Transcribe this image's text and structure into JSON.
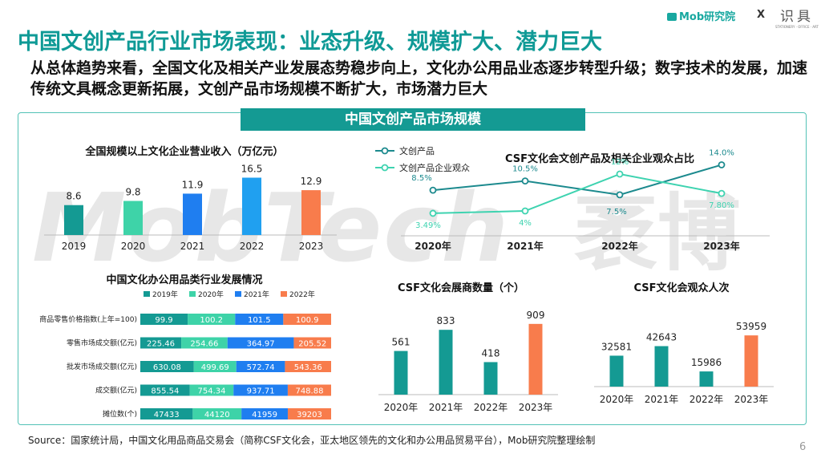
{
  "header": {
    "title": "中国文创产品行业市场表现：业态升级、规模扩大、潜力巨大",
    "subtitle": "从总体趋势来看，全国文化及相关产业发展态势稳步向上，文化办公用品业态逐步转型升级；数字技术的发展，加速传统文具概念更新拓展，文创产品市场规模不断扩大，市场潜力巨大",
    "logo_mob": "Mob研究院",
    "logo_x": "X",
    "logo_sj": "识具",
    "logo_sj_small": "STATIONERY · OFFICE · ART"
  },
  "panel": {
    "banner": "中国文创产品市场规模"
  },
  "watermark": {
    "text": "MobTech",
    "text2": "袤博"
  },
  "footer": {
    "source": "Source：国家统计局，中国文化用品商品交易会（简称CSF文化会，亚太地区领先的文化和办公用品贸易平台），Mob研究院整理绘制",
    "page": "6"
  },
  "colors": {
    "teal": "#149a93",
    "mint": "#3ed3a8",
    "blue": "#1f7ef0",
    "orange": "#f87c4c",
    "green_line": "#1c8a8e"
  },
  "chart_data": [
    {
      "id": "revenue",
      "type": "bar",
      "title": "全国规模以上文化企业营业收入（万亿元）",
      "categories": [
        "2019",
        "2020",
        "2021",
        "2022",
        "2023"
      ],
      "values": [
        8.6,
        9.8,
        11.9,
        16.5,
        12.9
      ],
      "colors": [
        "#149a93",
        "#3ed3a8",
        "#1f7ef0",
        "#20a0f0",
        "#f87c4c"
      ],
      "ylim": [
        0,
        18
      ]
    },
    {
      "id": "audience_share",
      "type": "line",
      "title": "CSF文化会文创产品及相关企业观众占比",
      "categories": [
        "2020年",
        "2021年",
        "2022年",
        "2023年"
      ],
      "ylim": [
        0,
        16
      ],
      "legend_position": "top-left",
      "series": [
        {
          "name": "文创产品",
          "values": [
            8.5,
            10.5,
            7.5,
            14.0
          ],
          "labels": [
            "8.5%",
            "10.5%",
            "7.5%",
            "14.0%"
          ],
          "color": "#1c8a8e"
        },
        {
          "name": "文创产品企业观众",
          "values": [
            3.49,
            4,
            12,
            7.8
          ],
          "labels": [
            "3.49%",
            "4%",
            "12%",
            "7.80%"
          ],
          "color": "#3ed3b0"
        }
      ]
    },
    {
      "id": "office_supplies",
      "type": "bar",
      "title": "中国文化办公用品类行业发展情况",
      "orientation": "horizontal-stacked-100",
      "categories": [
        "商品零售价格指数(上年=100)",
        "零售市场成交额(亿元)",
        "批发市场成交额(亿元)",
        "成交额(亿元)",
        "摊位数(个)"
      ],
      "series": [
        {
          "name": "2019年",
          "color": "#149a93",
          "values": [
            99.9,
            225.46,
            630.08,
            855.54,
            47433
          ]
        },
        {
          "name": "2020年",
          "color": "#3ed3a8",
          "values": [
            100.2,
            254.66,
            499.69,
            754.34,
            44120
          ]
        },
        {
          "name": "2021年",
          "color": "#1f7ef0",
          "values": [
            101.5,
            364.97,
            572.74,
            937.71,
            41959
          ]
        },
        {
          "name": "2022年",
          "color": "#f87c4c",
          "values": [
            100.9,
            205.52,
            543.36,
            748.88,
            39203
          ]
        }
      ],
      "legend_position": "top"
    },
    {
      "id": "exhibitors",
      "type": "bar",
      "title": "CSF文化会展商数量（个）",
      "categories": [
        "2020年",
        "2021年",
        "2022年",
        "2023年"
      ],
      "values": [
        561,
        833,
        418,
        909
      ],
      "colors": [
        "#149a93",
        "#149a93",
        "#149a93",
        "#f87c4c"
      ],
      "ylim": [
        0,
        1000
      ]
    },
    {
      "id": "visitors",
      "type": "bar",
      "title": "CSF文化会观众人次",
      "categories": [
        "2020年",
        "2021年",
        "2022年",
        "2023年"
      ],
      "values": [
        32581,
        42643,
        15986,
        53959
      ],
      "colors": [
        "#149a93",
        "#149a93",
        "#149a93",
        "#f87c4c"
      ],
      "ylim": [
        0,
        60000
      ]
    }
  ]
}
